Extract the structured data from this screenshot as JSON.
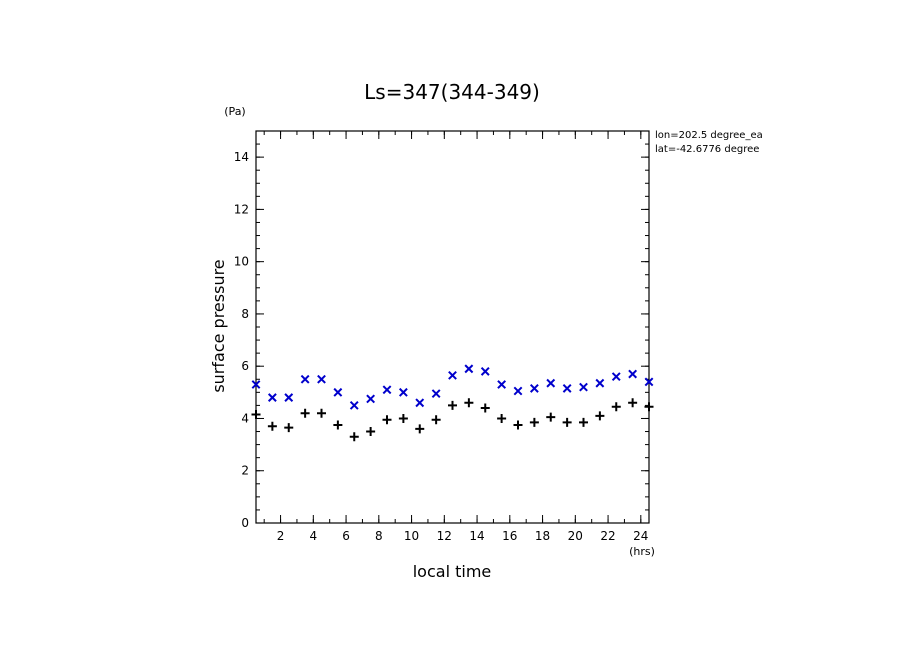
{
  "chart_data": {
    "type": "scatter",
    "title": "Ls=347(344-349)",
    "xlabel": "local time",
    "ylabel": "surface pressure",
    "x_unit": "(hrs)",
    "y_unit": "(Pa)",
    "xlim": [
      0.5,
      24.5
    ],
    "ylim": [
      0,
      15
    ],
    "x_ticks": [
      2,
      4,
      6,
      8,
      10,
      12,
      14,
      16,
      18,
      20,
      22,
      24
    ],
    "y_ticks": [
      0,
      2,
      4,
      6,
      8,
      10,
      12,
      14
    ],
    "annotations": [
      "lon=202.5 degree_ea",
      "lat=-42.6776 degree"
    ],
    "x": [
      0.5,
      1.5,
      2.5,
      3.5,
      4.5,
      5.5,
      6.5,
      7.5,
      8.5,
      9.5,
      10.5,
      11.5,
      12.5,
      13.5,
      14.5,
      15.5,
      16.5,
      17.5,
      18.5,
      19.5,
      20.5,
      21.5,
      22.5,
      23.5,
      24.5
    ],
    "series": [
      {
        "marker": "x",
        "color": "#0000cc",
        "values": [
          5.3,
          4.8,
          4.8,
          5.5,
          5.5,
          5.0,
          4.5,
          4.75,
          5.1,
          5.0,
          4.6,
          4.95,
          5.65,
          5.9,
          5.8,
          5.3,
          5.05,
          5.15,
          5.35,
          5.15,
          5.2,
          5.35,
          5.6,
          5.7,
          5.4
        ]
      },
      {
        "marker": "+",
        "color": "#000000",
        "values": [
          4.15,
          3.7,
          3.65,
          4.2,
          4.2,
          3.75,
          3.3,
          3.5,
          3.95,
          4.0,
          3.6,
          3.95,
          4.5,
          4.6,
          4.4,
          4.0,
          3.75,
          3.85,
          4.05,
          3.85,
          3.85,
          4.1,
          4.45,
          4.6,
          4.45
        ]
      }
    ]
  }
}
